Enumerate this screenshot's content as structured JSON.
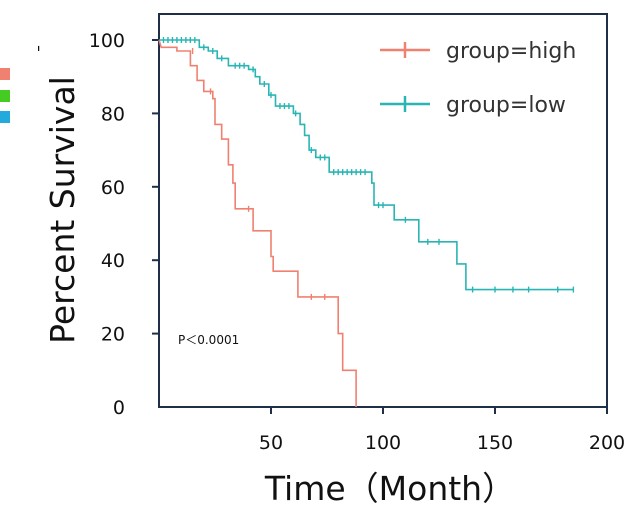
{
  "chart_data": {
    "type": "line",
    "subtype": "kaplan-meier",
    "xlabel": "Time（Month）",
    "ylabel": "Percent Survival",
    "xlim": [
      0,
      200
    ],
    "ylim": [
      0,
      100
    ],
    "x_ticks": [
      50,
      100,
      150,
      200
    ],
    "y_ticks": [
      0,
      20,
      40,
      60,
      80,
      100
    ],
    "grid": false,
    "legend_position": "top-right",
    "annotation": "P＜0.0001",
    "stray_mark": "ˌ",
    "series": [
      {
        "name": "group=high",
        "color": "#f08070",
        "steps": [
          [
            0,
            100
          ],
          [
            1,
            98
          ],
          [
            8,
            98
          ],
          [
            8,
            97
          ],
          [
            14,
            97
          ],
          [
            14,
            93
          ],
          [
            17,
            93
          ],
          [
            17,
            89
          ],
          [
            20,
            89
          ],
          [
            20,
            86
          ],
          [
            24,
            86
          ],
          [
            24,
            84
          ],
          [
            25,
            84
          ],
          [
            25,
            77
          ],
          [
            28,
            77
          ],
          [
            28,
            73
          ],
          [
            31,
            73
          ],
          [
            31,
            66
          ],
          [
            33,
            66
          ],
          [
            33,
            61
          ],
          [
            34,
            61
          ],
          [
            34,
            54
          ],
          [
            42,
            54
          ],
          [
            42,
            48
          ],
          [
            50,
            48
          ],
          [
            50,
            41
          ],
          [
            51,
            41
          ],
          [
            51,
            37
          ],
          [
            62,
            37
          ],
          [
            62,
            30
          ],
          [
            80,
            30
          ],
          [
            80,
            20
          ],
          [
            82,
            20
          ],
          [
            82,
            10
          ],
          [
            88,
            10
          ],
          [
            88,
            0
          ]
        ],
        "censored": [
          [
            15,
            97
          ],
          [
            23,
            86
          ],
          [
            40,
            54
          ],
          [
            68,
            30
          ],
          [
            74,
            30
          ]
        ]
      },
      {
        "name": "group=low",
        "color": "#2ab5b5",
        "steps": [
          [
            0,
            100
          ],
          [
            18,
            100
          ],
          [
            18,
            98
          ],
          [
            22,
            98
          ],
          [
            22,
            97
          ],
          [
            26,
            97
          ],
          [
            26,
            95
          ],
          [
            31,
            95
          ],
          [
            31,
            93
          ],
          [
            40,
            93
          ],
          [
            40,
            92
          ],
          [
            43,
            92
          ],
          [
            43,
            90
          ],
          [
            45,
            90
          ],
          [
            45,
            88
          ],
          [
            49,
            88
          ],
          [
            49,
            85
          ],
          [
            52,
            85
          ],
          [
            52,
            82
          ],
          [
            60,
            82
          ],
          [
            60,
            80
          ],
          [
            63,
            80
          ],
          [
            63,
            77
          ],
          [
            65,
            77
          ],
          [
            65,
            74
          ],
          [
            67,
            74
          ],
          [
            67,
            70
          ],
          [
            70,
            70
          ],
          [
            70,
            68
          ],
          [
            76,
            68
          ],
          [
            76,
            64
          ],
          [
            95,
            64
          ],
          [
            95,
            61
          ],
          [
            96,
            61
          ],
          [
            96,
            55
          ],
          [
            105,
            55
          ],
          [
            105,
            51
          ],
          [
            116,
            51
          ],
          [
            116,
            45
          ],
          [
            133,
            45
          ],
          [
            133,
            39
          ],
          [
            137,
            39
          ],
          [
            137,
            32
          ],
          [
            185,
            32
          ]
        ],
        "censored": [
          [
            2,
            100
          ],
          [
            4,
            100
          ],
          [
            6,
            100
          ],
          [
            8,
            100
          ],
          [
            10,
            100
          ],
          [
            12,
            100
          ],
          [
            14,
            100
          ],
          [
            16,
            100
          ],
          [
            20,
            98
          ],
          [
            24,
            97
          ],
          [
            28,
            95
          ],
          [
            34,
            93
          ],
          [
            36,
            93
          ],
          [
            38,
            93
          ],
          [
            42,
            92
          ],
          [
            47,
            88
          ],
          [
            50,
            85
          ],
          [
            54,
            82
          ],
          [
            56,
            82
          ],
          [
            58,
            82
          ],
          [
            61,
            80
          ],
          [
            68,
            70
          ],
          [
            72,
            68
          ],
          [
            74,
            68
          ],
          [
            78,
            64
          ],
          [
            80,
            64
          ],
          [
            82,
            64
          ],
          [
            84,
            64
          ],
          [
            86,
            64
          ],
          [
            88,
            64
          ],
          [
            90,
            64
          ],
          [
            92,
            64
          ],
          [
            98,
            55
          ],
          [
            100,
            55
          ],
          [
            110,
            51
          ],
          [
            120,
            45
          ],
          [
            125,
            45
          ],
          [
            140,
            32
          ],
          [
            150,
            32
          ],
          [
            158,
            32
          ],
          [
            165,
            32
          ],
          [
            178,
            32
          ],
          [
            185,
            32
          ]
        ]
      }
    ]
  }
}
